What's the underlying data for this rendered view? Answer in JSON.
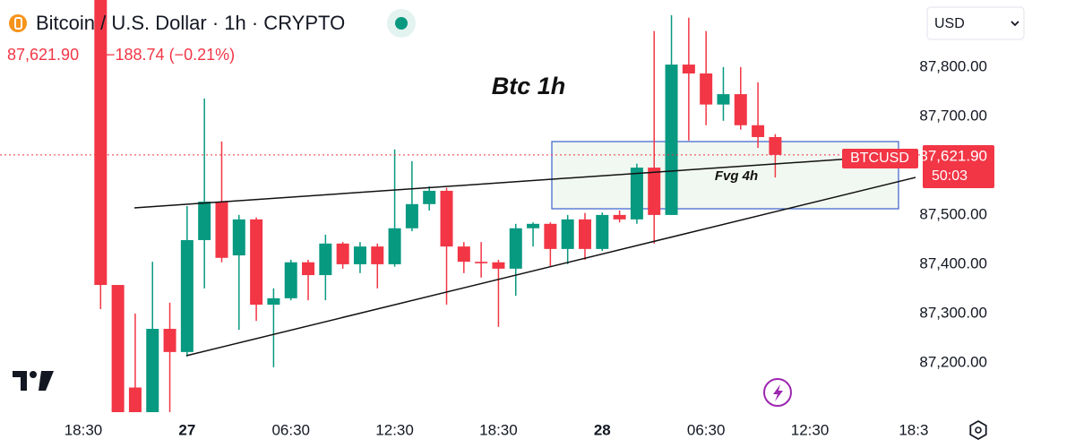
{
  "chart_data": {
    "type": "candlestick",
    "title": "Bitcoin / U.S. Dollar · 1h · CRYPTO",
    "last_price": {
      "value": 87621.9,
      "label": "87,621.90"
    },
    "change": "−188.74 (−0.21%)",
    "symbol": "BTCUSD",
    "countdown": "50:03",
    "currency": "USD",
    "annotations": [
      "Btc 1h",
      "Fvg 4h"
    ],
    "up_color": "#089981",
    "down_color": "#f23645",
    "categories": [
      "18:30",
      null,
      null,
      null,
      null,
      null,
      "27",
      null,
      null,
      null,
      null,
      null,
      "06:30",
      null,
      null,
      null,
      null,
      null,
      "12:30",
      null,
      null,
      null,
      null,
      null,
      "18:30",
      null,
      null,
      null,
      null,
      null,
      "28",
      null,
      null,
      null,
      null,
      null,
      "06:30",
      null,
      null,
      null,
      null,
      null,
      "12:30",
      null,
      null,
      null,
      null,
      null,
      "18:3"
    ],
    "open": [
      null,
      87940,
      87358,
      87150,
      87080,
      87269,
      87222,
      87449,
      87527,
      87418,
      87491,
      87318,
      87331,
      87404,
      87378,
      87442,
      87400,
      87436,
      87400,
      87473,
      87522,
      87549,
      87436,
      87405,
      87404,
      87391,
      87473,
      87482,
      87431,
      87491,
      87431,
      87500,
      87491,
      87596,
      87500,
      87805,
      87787,
      87724,
      87745,
      87682,
      87658,
      null,
      null,
      null,
      null,
      null,
      null,
      null,
      null
    ],
    "high": [
      null,
      87960,
      87358,
      87300,
      87405,
      87322,
      87518,
      87736,
      87649,
      87500,
      87495,
      87351,
      87409,
      87409,
      87460,
      87445,
      87445,
      87442,
      87633,
      87609,
      87558,
      87555,
      87445,
      87445,
      87409,
      87482,
      87485,
      87485,
      87500,
      87504,
      87505,
      87509,
      87604,
      87873,
      87905,
      87900,
      87873,
      87800,
      87800,
      87769,
      87664,
      null,
      null,
      null,
      null,
      null,
      null,
      null,
      null
    ],
    "low": [
      null,
      87309,
      87050,
      87000,
      87050,
      87100,
      87213,
      87351,
      87404,
      87267,
      87285,
      87191,
      87327,
      87327,
      87327,
      87391,
      87382,
      87351,
      87395,
      87467,
      87509,
      87318,
      87382,
      87373,
      87273,
      87336,
      87436,
      87395,
      87400,
      87409,
      87427,
      87485,
      87482,
      87442,
      87500,
      87651,
      87682,
      87691,
      87673,
      87636,
      87576,
      null,
      null,
      null,
      null,
      null,
      null,
      null,
      null
    ],
    "close": [
      null,
      87358,
      87090,
      87060,
      87269,
      87222,
      87449,
      87527,
      87413,
      87491,
      87318,
      87331,
      87404,
      87378,
      87442,
      87400,
      87436,
      87400,
      87473,
      87522,
      87549,
      87436,
      87405,
      87402,
      87391,
      87473,
      87482,
      87431,
      87491,
      87431,
      87500,
      87491,
      87596,
      87500,
      87805,
      87787,
      87724,
      87745,
      87682,
      87658,
      87621.9,
      null,
      null,
      null,
      null,
      null,
      null,
      null,
      null
    ],
    "ylim": [
      87100,
      87936
    ],
    "yticks": [
      {
        "value": 87200,
        "label": "87,200.00"
      },
      {
        "value": 87300,
        "label": "87,300.00"
      },
      {
        "value": 87400,
        "label": "87,400.00"
      },
      {
        "value": 87500,
        "label": "87,500.00"
      },
      {
        "value": 87700,
        "label": "87,700.00"
      },
      {
        "value": 87800,
        "label": "87,800.00"
      }
    ]
  }
}
